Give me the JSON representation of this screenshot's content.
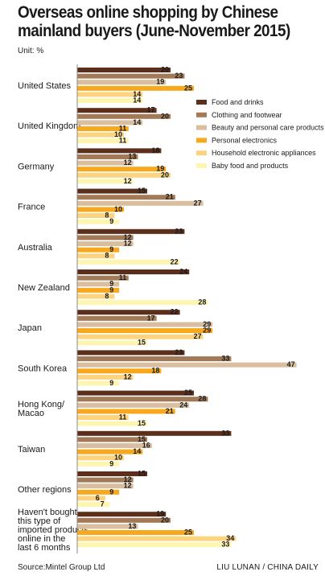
{
  "title_line1": "Overseas online shopping by Chinese",
  "title_line2": "mainland buyers (June-November 2015)",
  "unit": "Unit: %",
  "source": "Source:Mintel Group Ltd",
  "credit": "LIU LUNAN / CHINA DAILY",
  "colors": [
    "#5c2f1c",
    "#a37a58",
    "#d9bfa0",
    "#f7a81c",
    "#fcd47f",
    "#fdf5b0"
  ],
  "chart_data": {
    "type": "bar",
    "orientation": "horizontal",
    "title": "Overseas online shopping by Chinese mainland buyers (June-November 2015)",
    "categories": [
      [
        "United States"
      ],
      [
        "United Kingdom"
      ],
      [
        "Germany"
      ],
      [
        "France"
      ],
      [
        "Australia"
      ],
      [
        "New Zealand"
      ],
      [
        "Japan"
      ],
      [
        "South Korea"
      ],
      [
        "Hong Kong/",
        "Macao"
      ],
      [
        "Taiwan"
      ],
      [
        "Other regions"
      ],
      [
        "Haven't bought",
        "this type of",
        "imported products",
        "online in the",
        "last 6 months"
      ]
    ],
    "series": [
      {
        "name": "Food and drinks",
        "values": [
          20,
          17,
          18,
          15,
          23,
          24,
          22,
          23,
          25,
          33,
          15,
          19
        ]
      },
      {
        "name": "Clothing and footwear",
        "values": [
          23,
          20,
          13,
          21,
          12,
          11,
          17,
          33,
          28,
          15,
          12,
          20
        ]
      },
      {
        "name": "Beauty and personal care products",
        "values": [
          19,
          14,
          12,
          27,
          12,
          9,
          29,
          47,
          24,
          16,
          12,
          13
        ]
      },
      {
        "name": "Personal electronics",
        "values": [
          25,
          11,
          19,
          10,
          9,
          9,
          29,
          18,
          21,
          14,
          9,
          25
        ]
      },
      {
        "name": "Household electronic appliances",
        "values": [
          14,
          10,
          20,
          8,
          8,
          8,
          27,
          12,
          11,
          10,
          6,
          34
        ]
      },
      {
        "name": "Baby food and products",
        "values": [
          14,
          11,
          12,
          9,
          22,
          28,
          15,
          9,
          15,
          9,
          7,
          33
        ]
      }
    ],
    "xlim": [
      0,
      47
    ],
    "legend_position": "right"
  }
}
